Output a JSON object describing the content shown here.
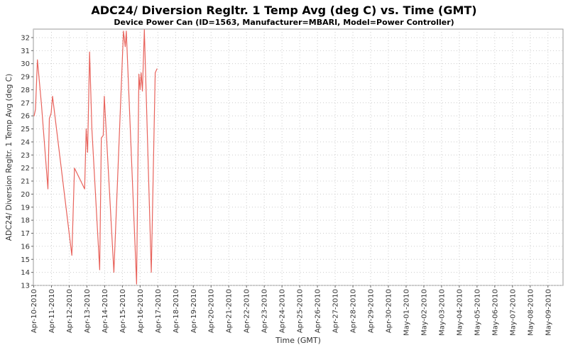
{
  "chart_data": {
    "type": "line",
    "title": "ADC24/ Diversion Regltr. 1 Temp Avg (deg C) vs. Time (GMT)",
    "subtitle": "Device Power Can (ID=1563, Manufacturer=MBARI, Model=Power Controller)",
    "xlabel": "Time (GMT)",
    "ylabel": "ADC24/ Diversion Regltr. 1 Temp Avg (deg C)",
    "legend_position": "none",
    "grid": "dotted",
    "x_tick_labels": [
      "Apr-10-2010",
      "Apr-11-2010",
      "Apr-12-2010",
      "Apr-13-2010",
      "Apr-14-2010",
      "Apr-15-2010",
      "Apr-16-2010",
      "Apr-17-2010",
      "Apr-18-2010",
      "Apr-19-2010",
      "Apr-20-2010",
      "Apr-21-2010",
      "Apr-22-2010",
      "Apr-23-2010",
      "Apr-24-2010",
      "Apr-25-2010",
      "Apr-26-2010",
      "Apr-27-2010",
      "Apr-28-2010",
      "Apr-29-2010",
      "Apr-30-2010",
      "May-01-2010",
      "May-02-2010",
      "May-03-2010",
      "May-04-2010",
      "May-05-2010",
      "May-06-2010",
      "May-07-2010",
      "May-08-2010",
      "May-09-2010"
    ],
    "y_ticks": [
      13,
      14,
      15,
      16,
      17,
      18,
      19,
      20,
      21,
      22,
      23,
      24,
      25,
      26,
      27,
      28,
      29,
      30,
      31,
      32
    ],
    "ylim": [
      13,
      32.65
    ],
    "xlim_days": [
      -0.02,
      29.85
    ],
    "series": [
      {
        "color": "#e8635c",
        "points_day_value": [
          [
            0.02,
            26.0
          ],
          [
            0.1,
            26.5
          ],
          [
            0.21,
            30.3
          ],
          [
            0.44,
            26.8
          ],
          [
            0.8,
            20.4
          ],
          [
            0.88,
            25.8
          ],
          [
            0.98,
            26.2
          ],
          [
            1.06,
            27.5
          ],
          [
            2.15,
            15.3
          ],
          [
            2.3,
            22.0
          ],
          [
            2.87,
            20.4
          ],
          [
            2.96,
            25.0
          ],
          [
            3.04,
            23.2
          ],
          [
            3.15,
            30.9
          ],
          [
            3.28,
            25.0
          ],
          [
            3.72,
            14.2
          ],
          [
            3.81,
            24.3
          ],
          [
            3.92,
            24.5
          ],
          [
            3.98,
            27.5
          ],
          [
            4.52,
            14.0
          ],
          [
            5.06,
            32.5
          ],
          [
            5.16,
            31.3
          ],
          [
            5.22,
            32.5
          ],
          [
            5.8,
            13.1
          ],
          [
            5.93,
            29.2
          ],
          [
            6.0,
            28.0
          ],
          [
            6.06,
            29.3
          ],
          [
            6.13,
            27.9
          ],
          [
            6.24,
            32.6
          ],
          [
            6.63,
            14.0
          ],
          [
            6.85,
            29.3
          ],
          [
            6.95,
            29.6
          ]
        ]
      }
    ],
    "colors": {
      "background": "#ffffff",
      "plot_background": "#ffffff",
      "plot_border": "#9a9a9a",
      "gridline": "#cccccc",
      "tick_mark": "#666666",
      "tick_text": "#333333",
      "axis_title_text": "#333333",
      "title_text": "#000000"
    }
  }
}
